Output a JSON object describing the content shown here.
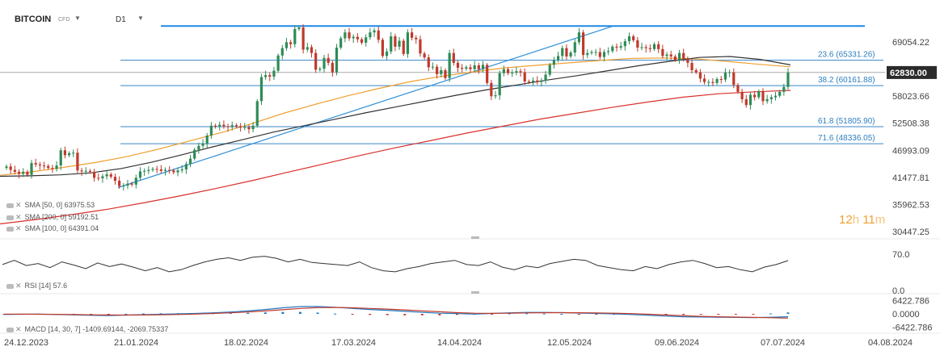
{
  "header": {
    "symbol": "BITCOIN",
    "instrument_type": "CFD",
    "timeframe": "D1"
  },
  "price_badge": {
    "value": "62830.00",
    "color": "#2b2b2b"
  },
  "countdown": {
    "hours": "12",
    "h_unit": "h",
    "minutes": "11",
    "m_unit": "m"
  },
  "indicators": {
    "sma50": {
      "label": "SMA [50, 0]",
      "value": "63975.53",
      "color": "#f0a030"
    },
    "sma200": {
      "label": "SMA [200, 0]",
      "value": "59192.51",
      "color": "#d9302c"
    },
    "sma100": {
      "label": "SMA [100, 0]",
      "value": "64391.04",
      "color": "#333333"
    },
    "rsi": {
      "label": "RSI [14]",
      "value": "57.6"
    },
    "macd": {
      "label": "MACD [14, 30, 7]",
      "value1": "-1409.69144",
      "value2": "-2069.75337"
    }
  },
  "fib_levels": [
    {
      "label": "23.6 (65331.26)",
      "price": 65331.26
    },
    {
      "label": "38.2 (60161.88)",
      "price": 60161.88
    },
    {
      "label": "61.8 (51805.90)",
      "price": 51805.9
    },
    {
      "label": "71.6 (48336.05)",
      "price": 48336.05
    }
  ],
  "chart_data": {
    "type": "candlestick",
    "title": "",
    "x_axis_dates": [
      "24.12.2023",
      "21.01.2024",
      "18.02.2024",
      "17.03.2024",
      "14.04.2024",
      "12.05.2024",
      "09.06.2024",
      "07.07.2024",
      "04.08.2024"
    ],
    "y_axis_ticks": [
      69054.22,
      63538.81,
      58023.66,
      52508.38,
      46993.09,
      41477.81,
      35962.53,
      30447.25
    ],
    "ylim": [
      30447.25,
      72300
    ],
    "current_price": 62830.0,
    "horizontal_resistance": 72300,
    "trendline": {
      "from": [
        "21.01.2024",
        39400
      ],
      "to": [
        "28.05.2024",
        72200
      ]
    },
    "candles": {
      "start_date": "24.12.2023",
      "closes": [
        43700,
        43000,
        42600,
        42200,
        42600,
        42000,
        44400,
        44100,
        43900,
        43800,
        43400,
        43200,
        43900,
        47000,
        46000,
        46400,
        46500,
        42900,
        42700,
        42800,
        42600,
        41400,
        41300,
        41700,
        42100,
        41600,
        40800,
        39700,
        39800,
        40200,
        40000,
        41400,
        42700,
        42800,
        43000,
        43200,
        43100,
        42800,
        43000,
        42900,
        42500,
        42900,
        43100,
        44200,
        45300,
        47100,
        47900,
        48400,
        50000,
        52000,
        51800,
        52200,
        51900,
        51700,
        52100,
        51900,
        51600,
        51700,
        51300,
        52000,
        57000,
        61900,
        62300,
        62000,
        63200,
        66300,
        67800,
        69000,
        68600,
        71700,
        72000,
        67500,
        68000,
        66800,
        63400,
        63600,
        65800,
        64800,
        62900,
        67900,
        69800,
        71000,
        69800,
        70100,
        69600,
        68900,
        70000,
        71000,
        71400,
        69500,
        66200,
        67100,
        70200,
        68100,
        69300,
        66600,
        71000,
        69900,
        69600,
        66700,
        65900,
        63900,
        64000,
        62500,
        63300,
        61700,
        66800,
        64800,
        63800,
        63600,
        63900,
        63500,
        64300,
        63500,
        64400,
        60700,
        58000,
        58200,
        62700,
        63500,
        62700,
        62800,
        63100,
        62900,
        61000,
        60900,
        61200,
        60900,
        61200,
        62400,
        64400,
        65400,
        66200,
        67800,
        66100,
        66900,
        69000,
        71000,
        66400,
        66800,
        67000,
        67000,
        66000,
        67000,
        67200,
        68100,
        67900,
        68200,
        69200,
        70200,
        69400,
        67900,
        68000,
        67800,
        67600,
        68600,
        67600,
        66200,
        66500,
        66100,
        65400,
        66800,
        65600,
        64800,
        63300,
        62900,
        61600,
        60900,
        60900,
        60700,
        61500,
        61400,
        62800,
        62900,
        60300,
        58900,
        57400,
        56200,
        58300,
        57800,
        59000,
        57000,
        57400,
        57800,
        58100,
        58900,
        59900,
        62830
      ],
      "note": "daily closes from 24.12.2023 onwards"
    },
    "sma50": [
      41900,
      42600,
      43500,
      44500,
      45700,
      47200,
      48900,
      50600,
      52500,
      54600,
      56400,
      58100,
      59600,
      61000,
      62100,
      63000,
      63800,
      64300,
      64800,
      65300,
      65700,
      65800,
      65600,
      65100,
      64500,
      64000
    ],
    "sma100": [
      41700,
      41800,
      42000,
      42400,
      43300,
      44600,
      46100,
      47700,
      49200,
      50700,
      52000,
      53300,
      54600,
      55800,
      57000,
      58200,
      59300,
      60300,
      61300,
      62200,
      63200,
      64200,
      65100,
      65900,
      66100,
      65500,
      64391
    ],
    "sma200": [
      32000,
      32900,
      33900,
      35000,
      36300,
      37700,
      39200,
      40800,
      42500,
      44200,
      45900,
      47500,
      49000,
      50500,
      51900,
      53300,
      54500,
      55700,
      56800,
      57800,
      58500,
      58900,
      59192
    ],
    "rsi": {
      "ylim": [
        0,
        70
      ],
      "ticks": [
        70.0,
        0.0
      ],
      "values": [
        50,
        58,
        48,
        52,
        44,
        55,
        49,
        42,
        53,
        46,
        51,
        45,
        38,
        44,
        36,
        40,
        48,
        55,
        60,
        63,
        58,
        64,
        66,
        62,
        55,
        60,
        54,
        52,
        50,
        48,
        55,
        44,
        38,
        36,
        42,
        46,
        52,
        55,
        58,
        50,
        48,
        55,
        45,
        40,
        47,
        44,
        52,
        56,
        60,
        58,
        48,
        44,
        40,
        38,
        46,
        42,
        50,
        55,
        58,
        52,
        44,
        46,
        40,
        36,
        45,
        50,
        57.6
      ]
    },
    "macd": {
      "ticks": [
        6422.786,
        0.0,
        -6422.786
      ],
      "ylim": [
        -6422.786,
        6422.786
      ],
      "line": [
        -300,
        -200,
        -100,
        -300,
        -500,
        -700,
        -800,
        -600,
        -400,
        -200,
        0,
        200,
        500,
        900,
        1400,
        2100,
        2900,
        3500,
        3600,
        3200,
        2600,
        2100,
        1700,
        1200,
        700,
        300,
        100,
        -100,
        200,
        500,
        700,
        700,
        600,
        400,
        200,
        0,
        -300,
        -700,
        -1100,
        -1400,
        -1500,
        -1600,
        -1700,
        -1800,
        -1650,
        -1410
      ],
      "signal": [
        -100,
        -150,
        -200,
        -250,
        -350,
        -450,
        -550,
        -600,
        -550,
        -450,
        -300,
        -100,
        200,
        500,
        900,
        1400,
        2000,
        2600,
        3000,
        3100,
        2900,
        2600,
        2300,
        1900,
        1400,
        1000,
        600,
        300,
        250,
        300,
        450,
        550,
        600,
        550,
        450,
        300,
        100,
        -200,
        -550,
        -900,
        -1200,
        -1400,
        -1550,
        -1700,
        -1850,
        -2070
      ],
      "histogram": [
        -100,
        -50,
        100,
        -50,
        -150,
        -250,
        -250,
        0,
        150,
        250,
        300,
        300,
        300,
        400,
        500,
        700,
        900,
        900,
        600,
        100,
        -300,
        -500,
        -600,
        -700,
        -700,
        -700,
        -500,
        -400,
        -50,
        200,
        250,
        150,
        0,
        -150,
        -250,
        -300,
        -400,
        -500,
        -550,
        -500,
        -300,
        -200,
        -150,
        -100,
        200,
        660
      ]
    }
  }
}
